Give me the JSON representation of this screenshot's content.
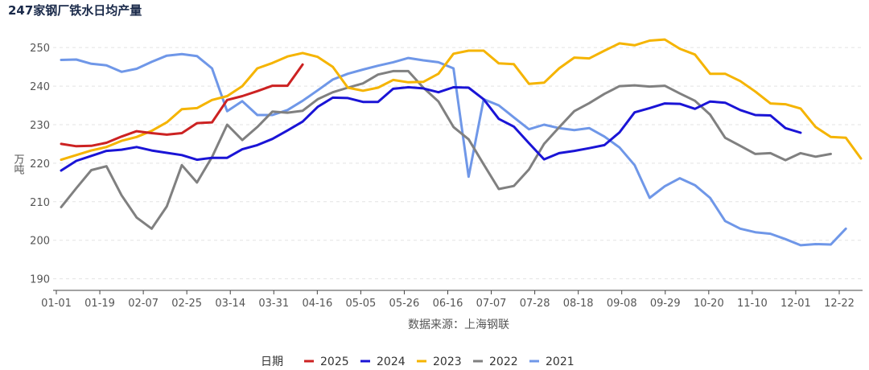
{
  "chart_data": {
    "type": "line",
    "title": "247家钢厂铁水日均产量",
    "ylabel": "万吨",
    "xlabel": "数据来源：上海钢联",
    "ylim": [
      187,
      254
    ],
    "yticks": [
      190,
      200,
      210,
      220,
      230,
      240,
      250
    ],
    "x_ticks": [
      "01-01",
      "01-19",
      "02-07",
      "02-25",
      "03-14",
      "03-31",
      "04-16",
      "05-05",
      "05-26",
      "06-16",
      "07-07",
      "07-28",
      "08-18",
      "09-08",
      "09-29",
      "10-20",
      "11-10",
      "12-01",
      "12-22"
    ],
    "grid": "horizontal-dashed",
    "legend_title": "日期",
    "legend_position": "bottom",
    "series": [
      {
        "name": "2025",
        "color": "#cc2222",
        "values": [
          225,
          224.4,
          224.5,
          225.3,
          226.9,
          228.3,
          227.8,
          227.4,
          227.8,
          230.4,
          230.6,
          236.4,
          237.4,
          238.7,
          240.1,
          240.1,
          245.6
        ]
      },
      {
        "name": "2024",
        "color": "#1a14d6",
        "values": [
          218.1,
          220.6,
          221.9,
          223.2,
          223.5,
          224.2,
          223.3,
          222.7,
          222.1,
          220.9,
          221.4,
          221.4,
          223.6,
          224.7,
          226.3,
          228.5,
          230.8,
          234.6,
          237,
          236.9,
          235.9,
          235.9,
          239.3,
          239.7,
          239.4,
          238.4,
          239.7,
          239.6,
          236.6,
          231.5,
          229.5,
          225.2,
          221,
          222.6,
          223.2,
          223.9,
          224.7,
          228,
          233.2,
          234.3,
          235.5,
          235.4,
          234.1,
          236,
          235.7,
          233.8,
          232.5,
          232.4,
          229.1,
          227.9
        ]
      },
      {
        "name": "2023",
        "color": "#f5b400",
        "values": [
          220.9,
          222.1,
          223.3,
          224.2,
          225.8,
          226.8,
          228.4,
          230.6,
          234,
          234.3,
          236.4,
          237.4,
          240,
          244.6,
          246,
          247.7,
          248.6,
          247.6,
          245,
          239.6,
          238.8,
          239.6,
          241.6,
          241,
          241.1,
          243.2,
          248.4,
          249.2,
          249.2,
          245.9,
          245.7,
          240.6,
          240.9,
          244.6,
          247.4,
          247.2,
          249.2,
          251.1,
          250.6,
          251.8,
          252.1,
          249.7,
          248.2,
          243.2,
          243.2,
          241.3,
          238.6,
          235.5,
          235.3,
          234.2,
          229.4,
          226.8,
          226.6,
          221.2
        ]
      },
      {
        "name": "2022",
        "color": "#808080",
        "values": [
          208.6,
          213.5,
          218.2,
          219.2,
          211.7,
          205.9,
          203,
          208.8,
          219.5,
          215,
          221.6,
          230,
          226,
          229.4,
          233.4,
          233.1,
          233.6,
          236.6,
          238.4,
          239.6,
          240.7,
          243,
          243.9,
          243.9,
          239.6,
          236,
          229.4,
          226.2,
          219.7,
          213.3,
          214.1,
          218.4,
          225,
          229.3,
          233.5,
          235.6,
          238,
          240,
          240.2,
          239.9,
          240.1,
          238.1,
          236.2,
          232.6,
          226.6,
          224.5,
          222.4,
          222.6,
          220.8,
          222.6,
          221.7,
          222.4
        ]
      },
      {
        "name": "2021",
        "color": "#6f97e8",
        "values": [
          246.8,
          246.9,
          245.8,
          245.4,
          243.7,
          244.5,
          246.3,
          247.9,
          248.3,
          247.8,
          244.6,
          233.5,
          236.1,
          232.5,
          232.5,
          233.8,
          236.2,
          238.9,
          241.7,
          243.2,
          244.3,
          245.3,
          246.2,
          247.3,
          246.7,
          246.2,
          244.6,
          216.5,
          236.6,
          235,
          231.9,
          228.8,
          230,
          229.1,
          228.6,
          229.1,
          226.9,
          224.1,
          219.5,
          211,
          214,
          216.1,
          214.3,
          211,
          205,
          203,
          202.1,
          201.7,
          200.3,
          198.7,
          199,
          198.9,
          203
        ]
      }
    ]
  }
}
